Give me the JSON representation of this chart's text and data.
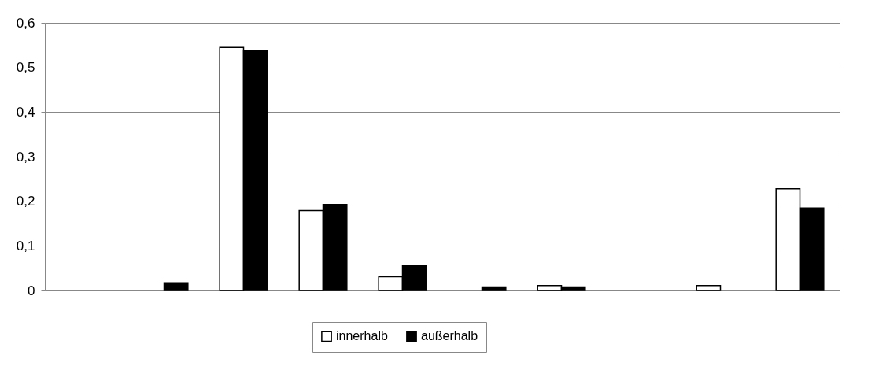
{
  "chart_data": {
    "type": "bar",
    "categories": [
      null,
      null,
      null,
      null,
      null,
      null,
      null,
      null,
      null,
      null
    ],
    "series": [
      {
        "name": "innerhalb",
        "color": "#ffffff",
        "values": [
          null,
          null,
          0.545,
          0.179,
          0.031,
          null,
          0.011,
          null,
          0.011,
          0.228
        ]
      },
      {
        "name": "außerhalb",
        "color": "#000000",
        "values": [
          null,
          0.017,
          0.537,
          0.193,
          0.057,
          0.008,
          0.008,
          null,
          null,
          0.185
        ]
      }
    ],
    "ylim": [
      0,
      0.6
    ],
    "yticks": [
      {
        "value": 0,
        "label": "0"
      },
      {
        "value": 0.1,
        "label": "0,1"
      },
      {
        "value": 0.2,
        "label": "0,2"
      },
      {
        "value": 0.3,
        "label": "0,3"
      },
      {
        "value": 0.4,
        "label": "0,4"
      },
      {
        "value": 0.5,
        "label": "0,5"
      },
      {
        "value": 0.6,
        "label": "0,6"
      }
    ],
    "grid": "y",
    "legend": "bottom",
    "tick_labels": "y"
  }
}
